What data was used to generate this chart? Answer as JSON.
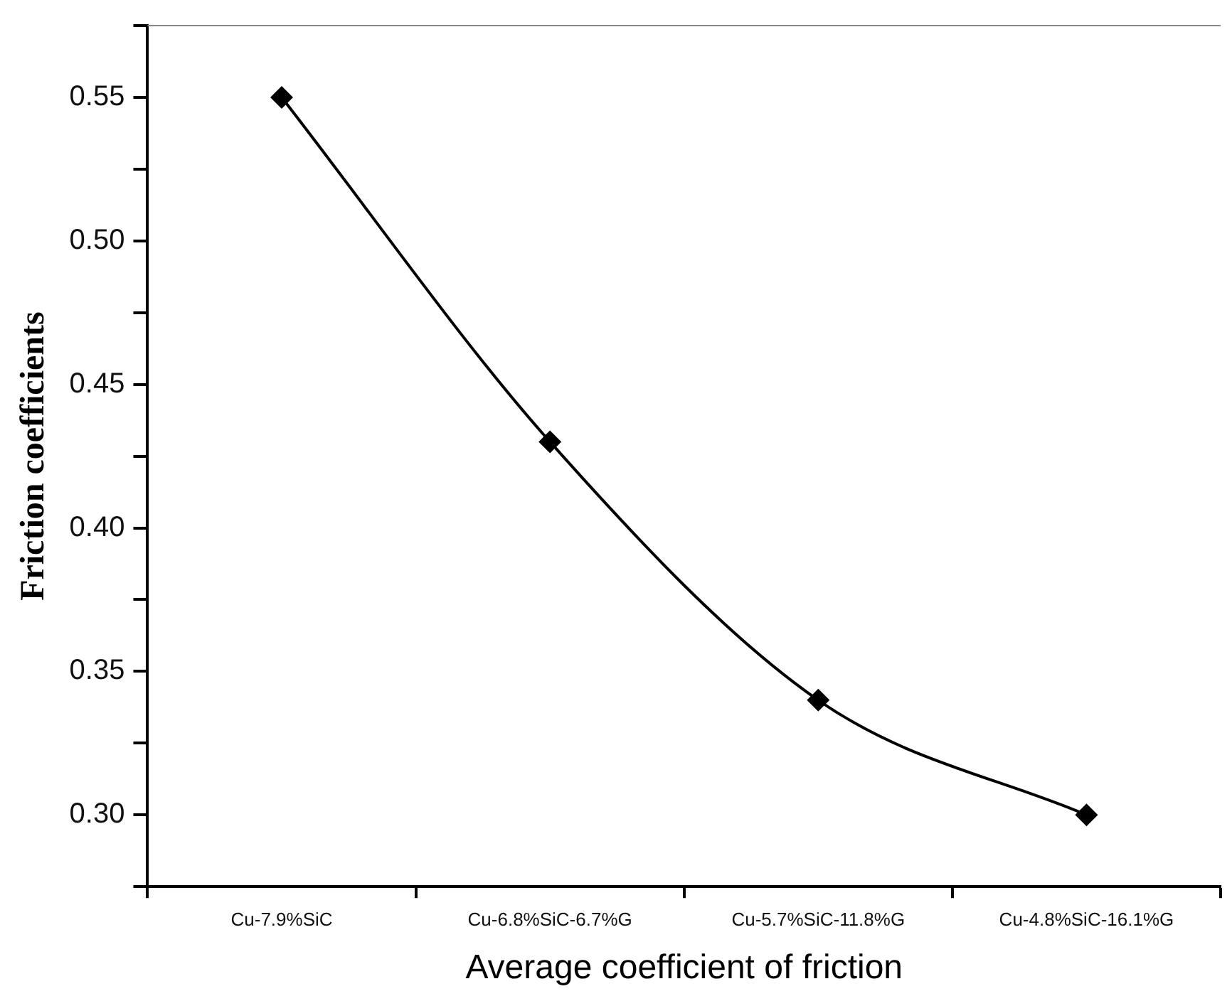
{
  "chart_data": {
    "type": "line",
    "xlabel": "Average coefficient of friction",
    "ylabel": "Friction coefficients",
    "categories": [
      "Cu-7.9%SiC",
      "Cu-6.8%SiC-6.7%G",
      "Cu-5.7%SiC-11.8%G",
      "Cu-4.8%SiC-16.1%G"
    ],
    "series": [
      {
        "color": "#000000",
        "values": [
          0.55,
          0.43,
          0.34,
          0.3
        ]
      }
    ],
    "ylim": [
      0.275,
      0.575
    ],
    "yticks": [
      {
        "value": 0.275,
        "label": null
      },
      {
        "value": 0.3,
        "label": "0.30"
      },
      {
        "value": 0.325,
        "label": null
      },
      {
        "value": 0.35,
        "label": "0.35"
      },
      {
        "value": 0.375,
        "label": null
      },
      {
        "value": 0.4,
        "label": "0.40"
      },
      {
        "value": 0.425,
        "label": null
      },
      {
        "value": 0.45,
        "label": "0.45"
      },
      {
        "value": 0.475,
        "label": null
      },
      {
        "value": 0.5,
        "label": "0.50"
      },
      {
        "value": 0.525,
        "label": null
      },
      {
        "value": 0.55,
        "label": "0.55"
      },
      {
        "value": 0.575,
        "label": null
      }
    ],
    "grid": false,
    "legend": false,
    "marker": "diamond",
    "line_style": "solid"
  }
}
